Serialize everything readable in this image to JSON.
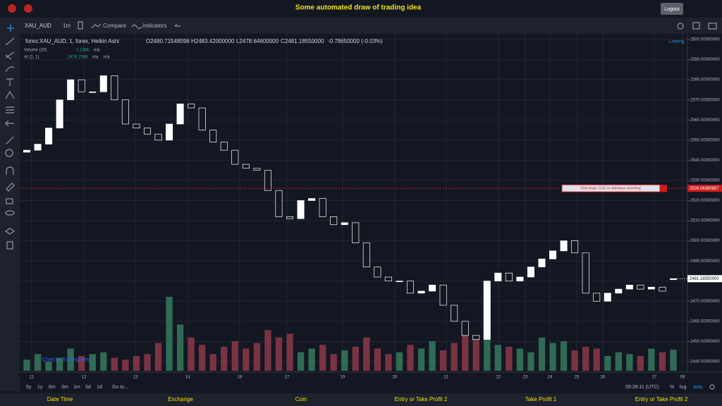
{
  "header": {
    "title": "Some automated draw of trading idea",
    "logout": "Logout"
  },
  "toolbar": {
    "symbol": "XAU_AUD",
    "interval": "1m",
    "compare": "Compare",
    "indicators": "Indicators"
  },
  "legend": {
    "series": "forex:XAU_AUD, 1, forex, Heikin Ashi",
    "open": "O2480.71548596",
    "high": "H2483.42000000",
    "low": "L2478.64600000",
    "close": "C2481.18550000",
    "change": "-0.78650000 (-0.03%)",
    "volume": "Volume (20)",
    "volume_value": "1.138K",
    "volume_na": "n/a",
    "ai": "AI (1, 1)",
    "ai_value": "2476.2598",
    "ai_na1": "n/a",
    "ai_na2": "n/a",
    "loading": "Loading",
    "watermark": "Chart by TradingView"
  },
  "chart_data": {
    "type": "candlestick",
    "open": [
      2544,
      2545,
      2548,
      2556,
      2570,
      2580,
      2574,
      2574,
      2582,
      2570,
      2558,
      2556,
      2553,
      2550,
      2558,
      2568,
      2566,
      2555,
      2549,
      2545,
      2538,
      2536,
      2535,
      2525,
      2512,
      2511,
      2520,
      2521,
      2512,
      2508,
      2509,
      2499,
      2487,
      2482,
      2480,
      2480,
      2474,
      2475,
      2478,
      2468,
      2460,
      2453,
      2451,
      2480,
      2484,
      2480,
      2482,
      2487,
      2491,
      2495,
      2500,
      2494,
      2474,
      2470,
      2474,
      2476,
      2478,
      2476,
      2477,
      2480.71548596
    ],
    "close": [
      2545,
      2548,
      2556,
      2570,
      2580,
      2574,
      2574,
      2582,
      2570,
      2558,
      2556,
      2553,
      2550,
      2558,
      2568,
      2566,
      2555,
      2549,
      2545,
      2538,
      2536,
      2535,
      2525,
      2512,
      2511,
      2520,
      2521,
      2512,
      2508,
      2509,
      2499,
      2487,
      2482,
      2480,
      2480,
      2474,
      2475,
      2478,
      2468,
      2460,
      2453,
      2451,
      2480,
      2484,
      2480,
      2482,
      2487,
      2491,
      2495,
      2500,
      2494,
      2474,
      2470,
      2474,
      2476,
      2478,
      2476,
      2477,
      2475,
      2481.1855
    ],
    "volume": [
      600,
      900,
      500,
      700,
      1200,
      800,
      900,
      1000,
      700,
      600,
      800,
      900,
      1500,
      4000,
      2500,
      1800,
      1400,
      900,
      1300,
      1600,
      1200,
      1500,
      2200,
      1800,
      2000,
      1000,
      1200,
      1400,
      900,
      1100,
      1300,
      1800,
      1200,
      900,
      1000,
      1400,
      1200,
      1600,
      1100,
      1500,
      2000,
      1800,
      1700,
      1400,
      1300,
      1200,
      1000,
      1800,
      1500,
      1600,
      1100,
      1300,
      1200,
      800,
      1000,
      900,
      800,
      1200,
      1000,
      1138
    ],
    "up_color": "#ffffff",
    "down_color": "#131722",
    "volume_up_color": "#2f6b55",
    "volume_down_color": "#7a3342",
    "ylim": [
      2440,
      2600
    ],
    "yticks": [
      {
        "value": 2600,
        "label": "2600.00000000"
      },
      {
        "value": 2590,
        "label": "2590.00000000"
      },
      {
        "value": 2580,
        "label": "2580.00000000"
      },
      {
        "value": 2570,
        "label": "2570.00000000"
      },
      {
        "value": 2560,
        "label": "2560.00000000"
      },
      {
        "value": 2550,
        "label": "2550.00000000"
      },
      {
        "value": 2540,
        "label": "2540.00000000"
      },
      {
        "value": 2530,
        "label": "2530.00000000"
      },
      {
        "value": 2520,
        "label": "2520.00000000"
      },
      {
        "value": 2510,
        "label": "2510.00000000"
      },
      {
        "value": 2500,
        "label": "2500.00000000"
      },
      {
        "value": 2490,
        "label": "2490.00000000"
      },
      {
        "value": 2480,
        "label": "2480.00000000"
      },
      {
        "value": 2470,
        "label": "2470.00000000"
      },
      {
        "value": 2460,
        "label": "2460.00000000"
      },
      {
        "value": 2450,
        "label": "2450.00000000"
      },
      {
        "value": 2440,
        "label": "2440.00000000"
      }
    ],
    "time_labels": [
      "11",
      "12",
      "13",
      "14",
      "16",
      "17",
      "19",
      "20",
      "21",
      "22",
      "23",
      "24",
      "25",
      "26",
      "27",
      "09"
    ],
    "hline": {
      "value": 2526.06380857,
      "label": "2526.06380857",
      "note": "Dont draw. CUC or sideways incoming",
      "color": "#d01c1c"
    },
    "last_price": {
      "value": 2481.1855,
      "label": "2481.18550000"
    },
    "grid": true
  },
  "bottom": {
    "ranges": [
      "5y",
      "1y",
      "6m",
      "3m",
      "1m",
      "5d",
      "1d"
    ],
    "goto": "Go to...",
    "clock": "09:28:11 (UTC)",
    "percent": "%",
    "log": "log",
    "auto": "auto"
  },
  "footer": [
    "Date Time",
    "Exchange",
    "Coin",
    "Entry or Take Profit 2",
    "Take Profit 1",
    "Entry or Take Profit 2"
  ]
}
